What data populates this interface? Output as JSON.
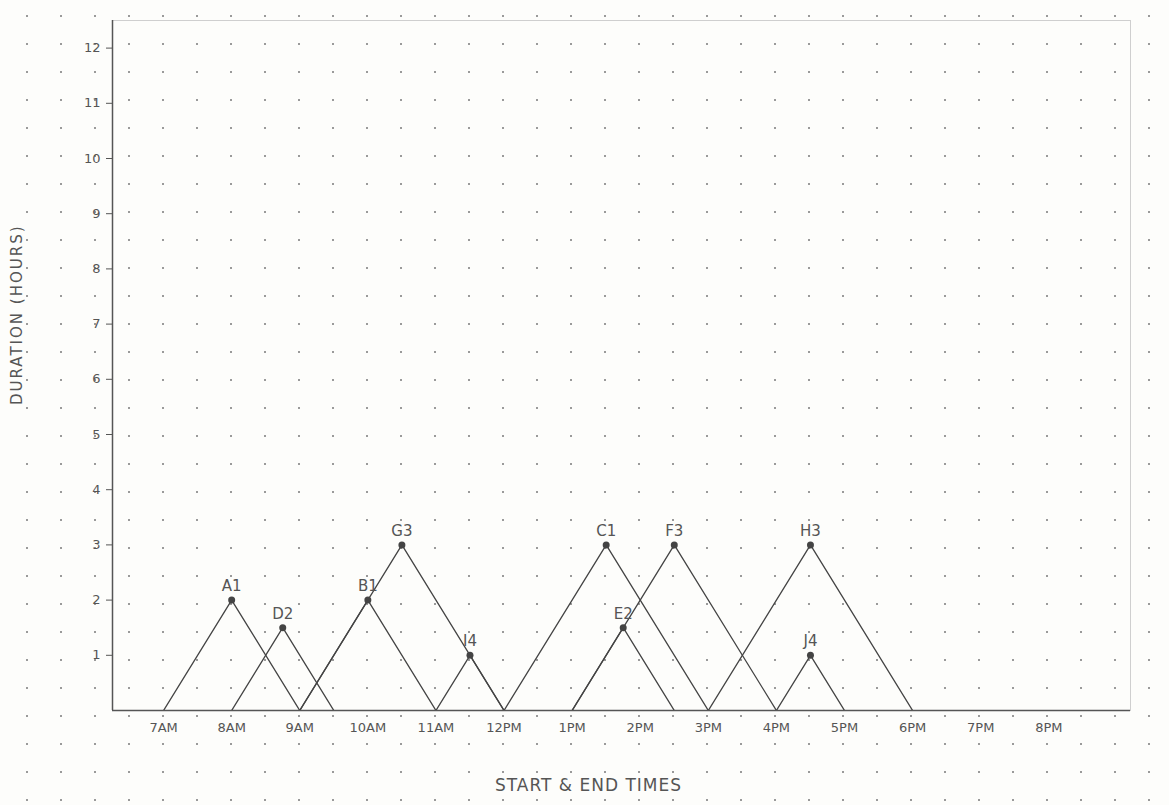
{
  "chart_data": {
    "type": "line",
    "x_label": "START & END TIMES",
    "y_label": "DURATION (HOURS)",
    "xlim": [
      6.25,
      21.2
    ],
    "ylim": [
      0,
      12.5
    ],
    "xticks": [
      {
        "value": 7,
        "label": "7AM"
      },
      {
        "value": 8,
        "label": "8AM"
      },
      {
        "value": 9,
        "label": "9AM"
      },
      {
        "value": 10,
        "label": "10AM"
      },
      {
        "value": 11,
        "label": "11AM"
      },
      {
        "value": 12,
        "label": "12PM"
      },
      {
        "value": 13,
        "label": "1PM"
      },
      {
        "value": 14,
        "label": "2PM"
      },
      {
        "value": 15,
        "label": "3PM"
      },
      {
        "value": 16,
        "label": "4PM"
      },
      {
        "value": 17,
        "label": "5PM"
      },
      {
        "value": 18,
        "label": "6PM"
      },
      {
        "value": 19,
        "label": "7PM"
      },
      {
        "value": 20,
        "label": "8PM"
      }
    ],
    "yticks": [
      1,
      2,
      3,
      4,
      5,
      6,
      7,
      8,
      9,
      10,
      11,
      12
    ],
    "grid": true,
    "series": [
      {
        "name": "A1",
        "color": "#444444",
        "marker": "circle",
        "x": [
          7,
          8,
          9
        ],
        "values": [
          0,
          2,
          0
        ]
      },
      {
        "name": "D2",
        "color": "#444444",
        "marker": "circle",
        "x": [
          8,
          8.75,
          9.5
        ],
        "values": [
          0,
          1.5,
          0
        ]
      },
      {
        "name": "B1",
        "color": "#444444",
        "marker": "circle",
        "x": [
          9,
          10,
          11
        ],
        "values": [
          0,
          2,
          0
        ]
      },
      {
        "name": "G3",
        "color": "#444444",
        "marker": "circle",
        "x": [
          9,
          10.5,
          12
        ],
        "values": [
          0,
          3,
          0
        ]
      },
      {
        "name": "I4",
        "color": "#444444",
        "marker": "circle",
        "x": [
          11,
          11.5,
          12
        ],
        "values": [
          0,
          1,
          0
        ]
      },
      {
        "name": "C1",
        "color": "#444444",
        "marker": "circle",
        "x": [
          12,
          13.5,
          15
        ],
        "values": [
          0,
          3,
          0
        ]
      },
      {
        "name": "E2",
        "color": "#444444",
        "marker": "circle",
        "x": [
          13,
          13.75,
          14.5
        ],
        "values": [
          0,
          1.5,
          0
        ]
      },
      {
        "name": "F3",
        "color": "#444444",
        "marker": "circle",
        "x": [
          13,
          14.5,
          16
        ],
        "values": [
          0,
          3,
          0
        ]
      },
      {
        "name": "H3",
        "color": "#444444",
        "marker": "circle",
        "x": [
          15,
          16.5,
          18
        ],
        "values": [
          0,
          3,
          0
        ]
      },
      {
        "name": "J4",
        "color": "#444444",
        "marker": "circle",
        "x": [
          16,
          16.5,
          17
        ],
        "values": [
          0,
          1,
          0
        ]
      }
    ]
  }
}
